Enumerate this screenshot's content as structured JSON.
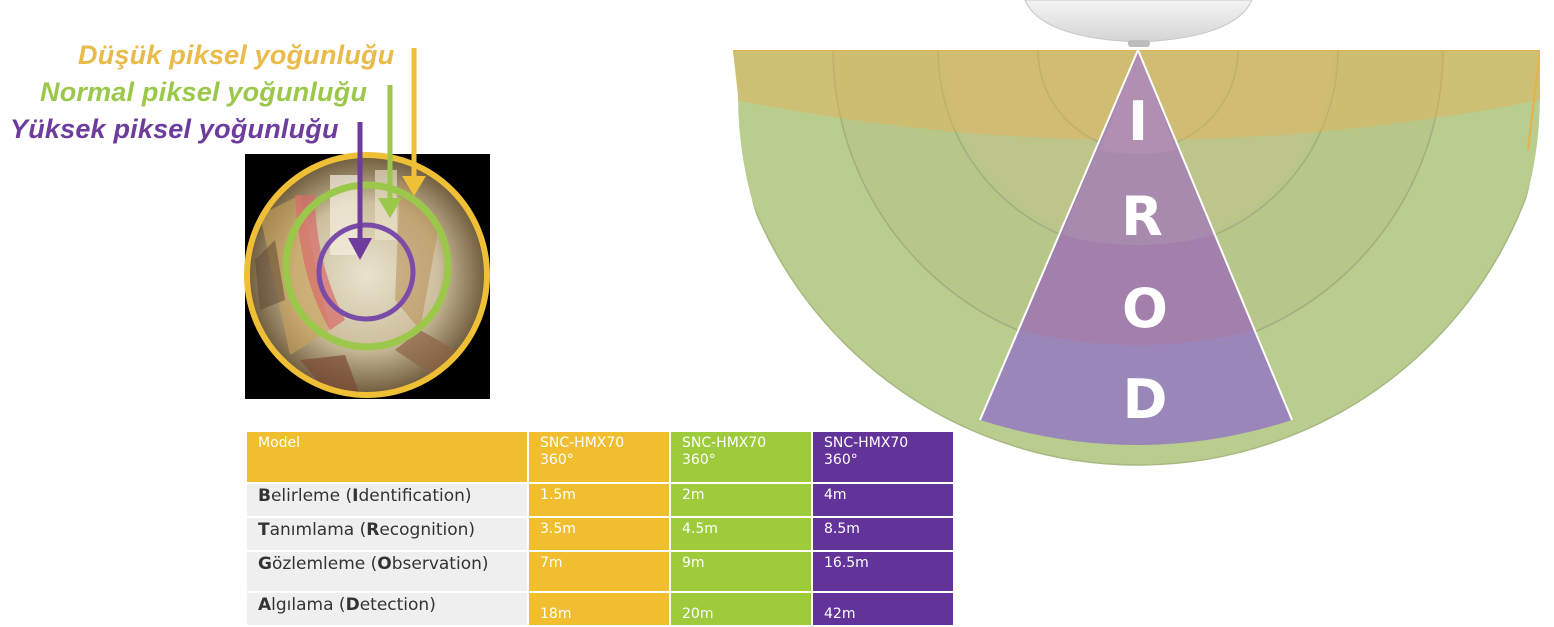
{
  "legend": {
    "low_density": "Düşük piksel yoğunluğu",
    "normal_density": "Normal piksel yoğunluğu",
    "high_density": "Yüksek piksel yoğunluğu"
  },
  "colors": {
    "low": "#e9bb4a",
    "normal": "#9bc84b",
    "high": "#6d3c9c",
    "table_yellow": "#f0be2f",
    "table_green": "#9dcb3c",
    "table_purple": "#623399"
  },
  "zones": [
    "I",
    "R",
    "O",
    "D"
  ],
  "table": {
    "header": {
      "model": "Model",
      "col1_line1": "SNC-HMX70",
      "col1_line2": "360°",
      "col2_line1": "SNC-HMX70",
      "col2_line2": "360°",
      "col3_line1": "SNC-HMX70",
      "col3_line2": "360°"
    },
    "rows": [
      {
        "initial": "B",
        "rest1": "elirleme (",
        "key": "I",
        "rest2": "dentification)",
        "v1": "1.5m",
        "v2": "2m",
        "v3": "4m"
      },
      {
        "initial": "T",
        "rest1": "anımlama (",
        "key": "R",
        "rest2": "ecognition)",
        "v1": "3.5m",
        "v2": "4.5m",
        "v3": "8.5m"
      },
      {
        "initial": "G",
        "rest1": "özlemleme (",
        "key": "O",
        "rest2": "bservation)",
        "v1": "7m",
        "v2": "9m",
        "v3": "16.5m"
      },
      {
        "initial": "A",
        "rest1": "lgılama (",
        "key": "D",
        "rest2": "etection)",
        "v1": "18m",
        "v2": "20m",
        "v3": "42m"
      }
    ]
  }
}
